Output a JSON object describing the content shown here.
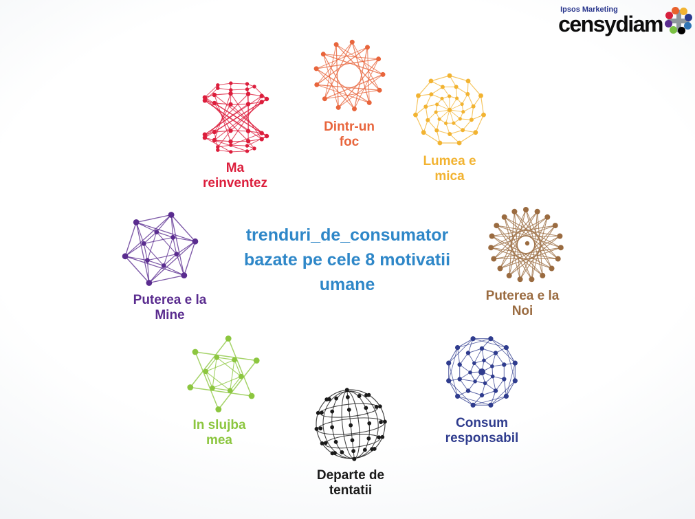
{
  "logo": {
    "brand_top": "Ipsos Marketing",
    "brand_main": "censydiam",
    "brand_top_color": "#26338B",
    "brand_main_color": "#0d0d0d",
    "icon": {
      "name": "censydiam-flower-icon",
      "cross_color": "#8E979E",
      "dot_colors": [
        "#E8612C",
        "#F2B431",
        "#2A3B8F",
        "#2E74B5",
        "#000000",
        "#7AC143",
        "#5A2C8F",
        "#D71F3C"
      ]
    }
  },
  "title": {
    "lines": [
      "trenduri_de_consumator",
      "bazate pe cele 8 motivatii",
      "umane"
    ],
    "color": "#2E87C8"
  },
  "motivations": [
    {
      "id": "ma-reinventez",
      "label_lines": [
        "Ma",
        "reinventez"
      ],
      "color": "#DC1E3C",
      "pattern": "barrel"
    },
    {
      "id": "dintr-un-foc",
      "label_lines": [
        "Dintr-un",
        "foc"
      ],
      "color": "#E8653C",
      "pattern": "star"
    },
    {
      "id": "lumea-e-mica",
      "label_lines": [
        "Lumea e",
        "mica"
      ],
      "color": "#F2B331",
      "pattern": "web"
    },
    {
      "id": "puterea-e-la-noi",
      "label_lines": [
        "Puterea e la",
        "Noi"
      ],
      "color": "#9A6B40",
      "pattern": "wheel"
    },
    {
      "id": "puterea-e-la-mine",
      "label_lines": [
        "Puterea e la",
        "Mine"
      ],
      "color": "#5A2C8F",
      "pattern": "icosa"
    },
    {
      "id": "in-slujba-mea",
      "label_lines": [
        "In slujba",
        "mea"
      ],
      "color": "#8CC63F",
      "pattern": "hexstar"
    },
    {
      "id": "departe-de-tentatii",
      "label_lines": [
        "Departe de",
        "tentatii"
      ],
      "color": "#1A1A1A",
      "pattern": "globe"
    },
    {
      "id": "consum-responsabil",
      "label_lines": [
        "Consum",
        "responsabil"
      ],
      "color": "#2F3C8E",
      "pattern": "denseweb"
    }
  ]
}
